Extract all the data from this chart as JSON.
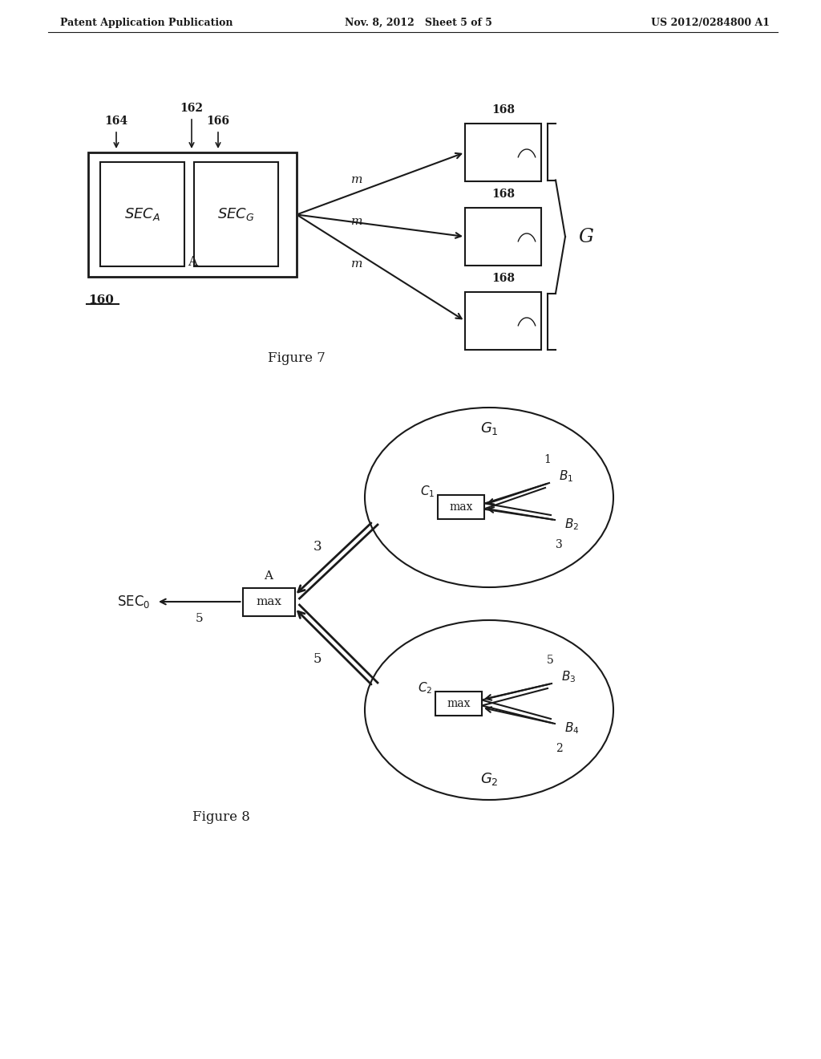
{
  "header_left": "Patent Application Publication",
  "header_mid": "Nov. 8, 2012   Sheet 5 of 5",
  "header_right": "US 2012/0284800 A1",
  "fig7_label": "Figure 7",
  "fig8_label": "Figure 8",
  "bg_color": "#ffffff",
  "line_color": "#1a1a1a",
  "text_color": "#1a1a1a"
}
